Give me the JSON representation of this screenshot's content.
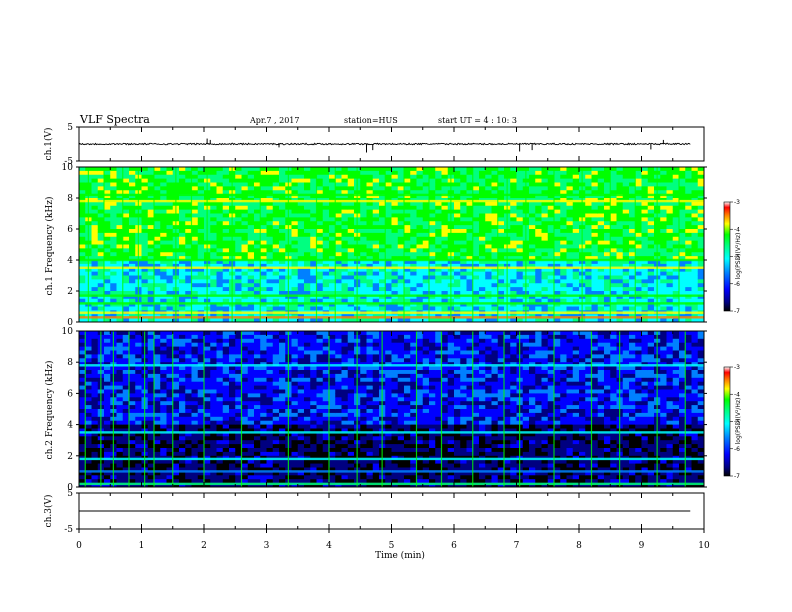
{
  "header": {
    "title": "VLF Spectra",
    "date": "Apr.7 , 2017",
    "station": "station=HUS",
    "start": "start UT = 4 : 10: 3"
  },
  "colors": {
    "background": "#ffffff",
    "axis": "#000000",
    "colorscale": [
      "#000000",
      "#000080",
      "#0000ff",
      "#0080ff",
      "#00ffff",
      "#00ff80",
      "#00ff00",
      "#ffff00",
      "#ff8000",
      "#ff0000",
      "#ffffff"
    ]
  },
  "chart_data": [
    {
      "type": "line",
      "id": "waveform-ch1",
      "ylabel": "ch.1(V)",
      "ylim": [
        -5,
        5
      ],
      "yticks": [
        "5",
        "-5"
      ],
      "xlim": [
        0,
        10
      ],
      "baseline": 0,
      "spikes": [
        {
          "x": 2.05,
          "y": 1.6
        },
        {
          "x": 2.1,
          "y": 1.2
        },
        {
          "x": 3.2,
          "y": -1.0
        },
        {
          "x": 4.6,
          "y": -2.5
        },
        {
          "x": 4.7,
          "y": -1.8
        },
        {
          "x": 7.05,
          "y": -2.2
        },
        {
          "x": 7.25,
          "y": -1.8
        },
        {
          "x": 9.15,
          "y": -1.6
        },
        {
          "x": 9.35,
          "y": 1.2
        }
      ]
    },
    {
      "type": "heatmap",
      "id": "spectrogram-ch1",
      "ylabel": "ch.1 Frequency (kHz)",
      "ylim": [
        0,
        10
      ],
      "yticks": [
        "0",
        "2",
        "4",
        "6",
        "8",
        "10"
      ],
      "xlim": [
        0,
        10
      ],
      "colorbar": {
        "label": "log(PSD)(V²/Hz)",
        "range": [
          -7,
          -3
        ],
        "ticks": [
          "-3",
          "-4",
          "-5",
          "-6",
          "-7"
        ]
      },
      "background_level": 0.45,
      "upper_level": 0.62,
      "bands": [
        {
          "f": 0.3,
          "level": 0.8
        },
        {
          "f": 0.6,
          "level": 0.7
        },
        {
          "f": 1.2,
          "level": 0.62
        },
        {
          "f": 1.7,
          "level": 0.62
        },
        {
          "f": 3.5,
          "level": 0.7
        },
        {
          "f": 4.0,
          "level": 0.65
        },
        {
          "f": 7.8,
          "level": 0.72
        },
        {
          "f": 8.2,
          "level": 0.6
        }
      ],
      "sferics": [
        0.15,
        0.4,
        0.7,
        0.95,
        1.2,
        1.55,
        1.8,
        2.05,
        2.45,
        2.9,
        3.35,
        3.8,
        4.1,
        4.45,
        4.9,
        5.2,
        5.6,
        5.95,
        6.3,
        6.7,
        6.85,
        7.15,
        7.6,
        8.05,
        8.5,
        8.9,
        9.25,
        9.6
      ]
    },
    {
      "type": "heatmap",
      "id": "spectrogram-ch2",
      "ylabel": "ch.2 Frequency (kHz)",
      "ylim": [
        0,
        10
      ],
      "yticks": [
        "0",
        "2",
        "4",
        "6",
        "8",
        "10"
      ],
      "xlim": [
        0,
        10
      ],
      "colorbar": {
        "label": "log(PSD)(V²/Hz)",
        "range": [
          -7,
          -3
        ],
        "ticks": [
          "-3",
          "-4",
          "-5",
          "-6",
          "-7"
        ]
      },
      "background_level": 0.12,
      "upper_level": 0.25,
      "bands": [
        {
          "f": 0.2,
          "level": 0.5
        },
        {
          "f": 1.0,
          "level": 0.38
        },
        {
          "f": 1.8,
          "level": 0.45
        },
        {
          "f": 3.5,
          "level": 0.45
        },
        {
          "f": 7.8,
          "level": 0.4
        }
      ],
      "sferics": [
        0.1,
        0.35,
        0.55,
        0.8,
        1.05,
        1.2,
        1.5,
        2.0,
        2.6,
        3.35,
        4.0,
        4.45,
        4.85,
        5.4,
        5.8,
        6.3,
        6.8,
        7.05,
        7.6,
        8.2,
        8.65,
        9.25,
        9.7
      ]
    },
    {
      "type": "line",
      "id": "waveform-ch3",
      "ylabel": "ch.3(V)",
      "ylim": [
        -5,
        5
      ],
      "yticks": [
        "5",
        "-5"
      ],
      "xlim": [
        0,
        10
      ],
      "baseline": 0,
      "xlabel": "Time (min)",
      "xticks": [
        "0",
        "1",
        "2",
        "3",
        "4",
        "5",
        "6",
        "7",
        "8",
        "9",
        "10"
      ]
    }
  ]
}
